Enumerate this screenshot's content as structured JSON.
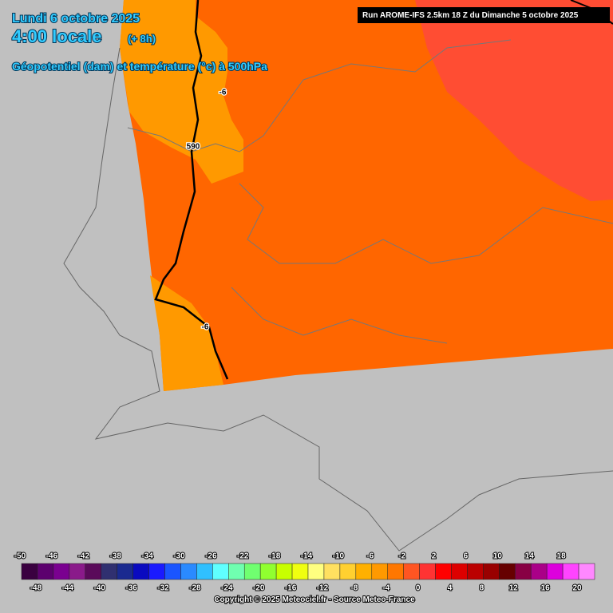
{
  "header": {
    "date": "Lundi 6 octobre 2025",
    "time": "4:00 locale",
    "lead": "(+ 8h)",
    "parameter": "Géopotentiel (dam) et température (°c) à 500hPa",
    "run": "Run AROME-IFS 2.5km 18 Z du Dimanche 5 octobre 2025"
  },
  "map_labels": [
    "-6",
    "590",
    "-6"
  ],
  "colorbar": {
    "labels": [
      "-50",
      "-48",
      "-46",
      "-44",
      "-42",
      "-40",
      "-38",
      "-36",
      "-34",
      "-32",
      "-30",
      "-28",
      "-26",
      "-24",
      "-22",
      "-20",
      "-18",
      "-16",
      "-14",
      "-12",
      "-10",
      "-8",
      "-6",
      "-4",
      "-2",
      "0",
      "2",
      "4",
      "6",
      "8",
      "10",
      "12",
      "14",
      "16",
      "18",
      "20"
    ],
    "colors": [
      "#3a0040",
      "#5c006e",
      "#7a0090",
      "#8a1a8a",
      "#5a0a5a",
      "#303070",
      "#1a2a90",
      "#0a0ac0",
      "#1a1aff",
      "#1a55ff",
      "#2a8aff",
      "#30c0ff",
      "#60ffff",
      "#70ffb0",
      "#70ff70",
      "#90ff30",
      "#c8ff00",
      "#f0ff10",
      "#ffff80",
      "#ffe060",
      "#ffd030",
      "#ffb000",
      "#ff9900",
      "#ff7700",
      "#ff5522",
      "#ff3333",
      "#ff0000",
      "#dd0000",
      "#bb0000",
      "#990000",
      "#660000",
      "#880044",
      "#aa0088",
      "#dd00dd",
      "#ff44ff",
      "#ff88ff"
    ]
  },
  "footer": "Copyright © 2025 Meteociel.fr - Source Meteo-France"
}
